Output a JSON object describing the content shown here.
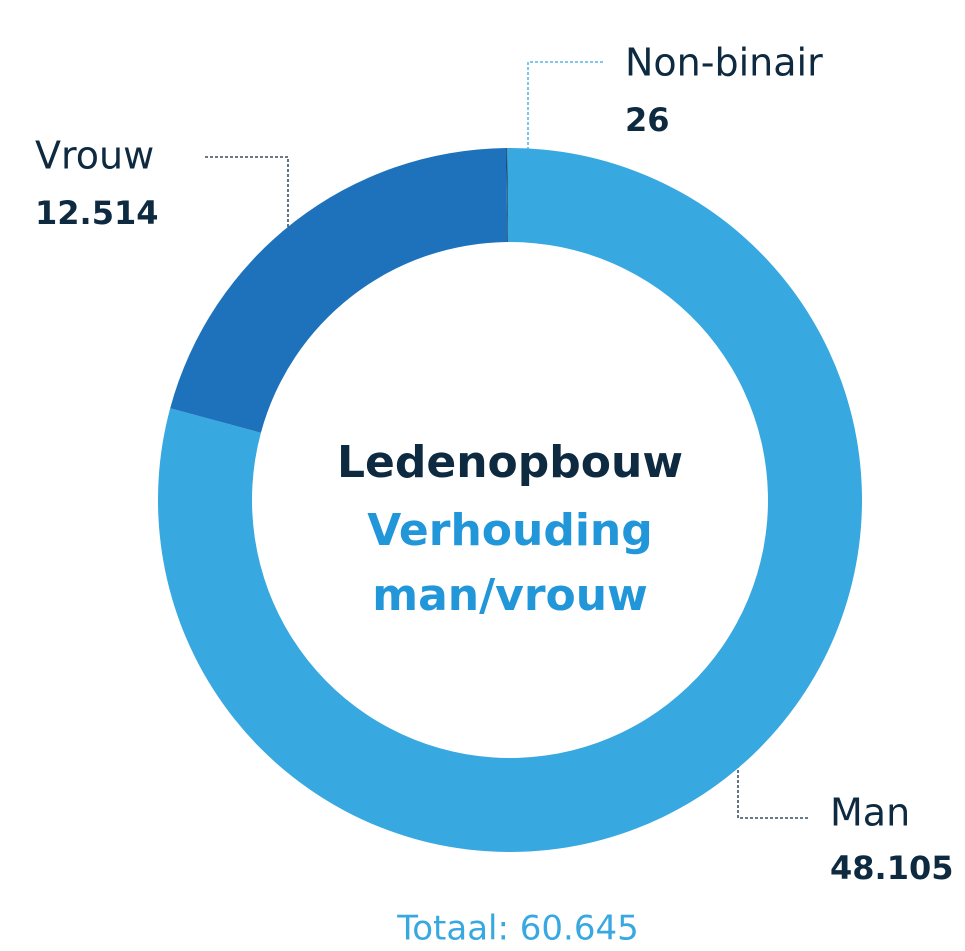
{
  "chart_data": {
    "type": "donut",
    "title": "Ledenopbouw",
    "subtitle": [
      "Verhouding",
      "man/vrouw"
    ],
    "categories": [
      "Non-binair",
      "Man",
      "Vrouw"
    ],
    "values": [
      26,
      48105,
      12514
    ],
    "value_labels": [
      "26",
      "48.105",
      "12.514"
    ],
    "colors": [
      "#0d2a40",
      "#38a8e0",
      "#1e72bb"
    ],
    "total_label": "Totaal: 60.645"
  }
}
